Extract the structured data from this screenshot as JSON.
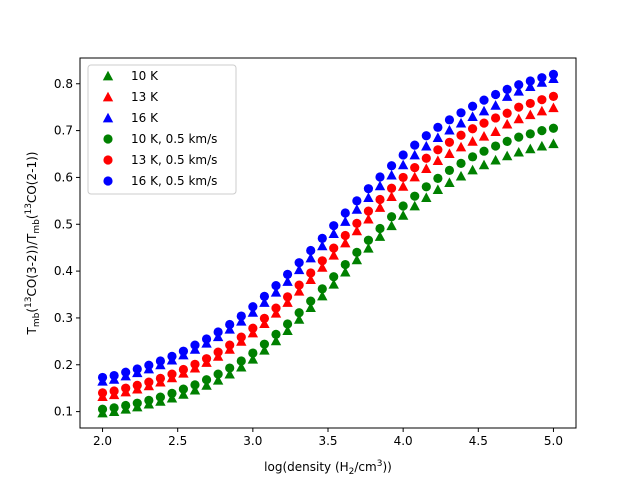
{
  "chart_data": {
    "type": "scatter",
    "title": "",
    "xlabel": "log(density (H2/cm3))",
    "ylabel": "Tmb(13CO(3-2))/Tmb(13CO(2-1))",
    "xlabel_parts": {
      "prefix": "log(density (H",
      "sub": "2",
      "mid": "/cm",
      "sup": "3",
      "suffix": "))"
    },
    "ylabel_parts": {
      "t1": "T",
      "sub1": "mb",
      "a": "(",
      "sup1": "13",
      "b": "CO(3-2))/T",
      "sub2": "mb",
      "c": "(",
      "sup2": "13",
      "d": "CO(2-1))"
    },
    "xlim": [
      1.85,
      5.15
    ],
    "ylim": [
      0.065,
      0.855
    ],
    "xticks": [
      2.0,
      2.5,
      3.0,
      3.5,
      4.0,
      4.5,
      5.0
    ],
    "xtick_labels": [
      "2.0",
      "2.5",
      "3.0",
      "3.5",
      "4.0",
      "4.5",
      "5.0"
    ],
    "yticks": [
      0.1,
      0.2,
      0.3,
      0.4,
      0.5,
      0.6,
      0.7,
      0.8
    ],
    "ytick_labels": [
      "0.1",
      "0.2",
      "0.3",
      "0.4",
      "0.5",
      "0.6",
      "0.7",
      "0.8"
    ],
    "grid": false,
    "legend_position": "top-left",
    "x": [
      2.0,
      2.077,
      2.154,
      2.231,
      2.308,
      2.385,
      2.462,
      2.538,
      2.615,
      2.692,
      2.769,
      2.846,
      2.923,
      3.0,
      3.077,
      3.154,
      3.231,
      3.308,
      3.385,
      3.462,
      3.538,
      3.615,
      3.692,
      3.769,
      3.846,
      3.923,
      4.0,
      4.077,
      4.154,
      4.231,
      4.308,
      4.385,
      4.462,
      4.538,
      4.615,
      4.692,
      4.769,
      4.846,
      4.923,
      5.0
    ],
    "series": [
      {
        "name": "10 K",
        "marker": "triangle",
        "color": "#008000",
        "values": [
          0.097,
          0.1,
          0.105,
          0.11,
          0.116,
          0.122,
          0.129,
          0.137,
          0.146,
          0.156,
          0.167,
          0.18,
          0.195,
          0.212,
          0.231,
          0.251,
          0.273,
          0.297,
          0.322,
          0.347,
          0.372,
          0.398,
          0.424,
          0.449,
          0.474,
          0.497,
          0.519,
          0.539,
          0.557,
          0.574,
          0.589,
          0.603,
          0.616,
          0.627,
          0.637,
          0.646,
          0.654,
          0.661,
          0.667,
          0.672
        ]
      },
      {
        "name": "13 K",
        "marker": "triangle",
        "color": "#ff0000",
        "values": [
          0.132,
          0.136,
          0.142,
          0.148,
          0.155,
          0.163,
          0.172,
          0.182,
          0.193,
          0.205,
          0.218,
          0.233,
          0.25,
          0.268,
          0.288,
          0.31,
          0.333,
          0.357,
          0.382,
          0.408,
          0.434,
          0.46,
          0.486,
          0.511,
          0.536,
          0.559,
          0.581,
          0.601,
          0.619,
          0.636,
          0.651,
          0.665,
          0.677,
          0.688,
          0.698,
          0.714,
          0.725,
          0.734,
          0.742,
          0.749
        ]
      },
      {
        "name": "16 K",
        "marker": "triangle",
        "color": "#0000ff",
        "values": [
          0.165,
          0.169,
          0.176,
          0.183,
          0.191,
          0.2,
          0.21,
          0.221,
          0.233,
          0.246,
          0.26,
          0.276,
          0.293,
          0.312,
          0.333,
          0.355,
          0.378,
          0.403,
          0.428,
          0.454,
          0.48,
          0.506,
          0.532,
          0.557,
          0.582,
          0.605,
          0.627,
          0.648,
          0.667,
          0.685,
          0.701,
          0.716,
          0.73,
          0.742,
          0.754,
          0.773,
          0.784,
          0.794,
          0.803,
          0.811
        ]
      },
      {
        "name": "10 K, 0.5 km/s",
        "marker": "circle",
        "color": "#008000",
        "values": [
          0.105,
          0.108,
          0.113,
          0.118,
          0.124,
          0.131,
          0.139,
          0.148,
          0.157,
          0.168,
          0.18,
          0.193,
          0.208,
          0.225,
          0.244,
          0.265,
          0.287,
          0.311,
          0.336,
          0.362,
          0.388,
          0.414,
          0.44,
          0.466,
          0.491,
          0.516,
          0.539,
          0.56,
          0.58,
          0.598,
          0.615,
          0.63,
          0.644,
          0.656,
          0.667,
          0.677,
          0.686,
          0.693,
          0.7,
          0.705
        ]
      },
      {
        "name": "13 K, 0.5 km/s",
        "marker": "circle",
        "color": "#ff0000",
        "values": [
          0.14,
          0.144,
          0.15,
          0.156,
          0.163,
          0.171,
          0.18,
          0.19,
          0.201,
          0.213,
          0.227,
          0.242,
          0.259,
          0.278,
          0.299,
          0.321,
          0.345,
          0.37,
          0.396,
          0.422,
          0.449,
          0.476,
          0.502,
          0.528,
          0.553,
          0.577,
          0.6,
          0.621,
          0.641,
          0.659,
          0.675,
          0.69,
          0.704,
          0.716,
          0.727,
          0.737,
          0.75,
          0.758,
          0.766,
          0.773
        ]
      },
      {
        "name": "16 K, 0.5 km/s",
        "marker": "circle",
        "color": "#0000ff",
        "values": [
          0.173,
          0.177,
          0.184,
          0.191,
          0.199,
          0.208,
          0.218,
          0.229,
          0.242,
          0.255,
          0.27,
          0.286,
          0.304,
          0.324,
          0.346,
          0.369,
          0.393,
          0.418,
          0.444,
          0.47,
          0.497,
          0.524,
          0.55,
          0.576,
          0.601,
          0.625,
          0.648,
          0.669,
          0.689,
          0.707,
          0.723,
          0.738,
          0.752,
          0.765,
          0.777,
          0.788,
          0.798,
          0.806,
          0.813,
          0.82
        ]
      }
    ]
  }
}
